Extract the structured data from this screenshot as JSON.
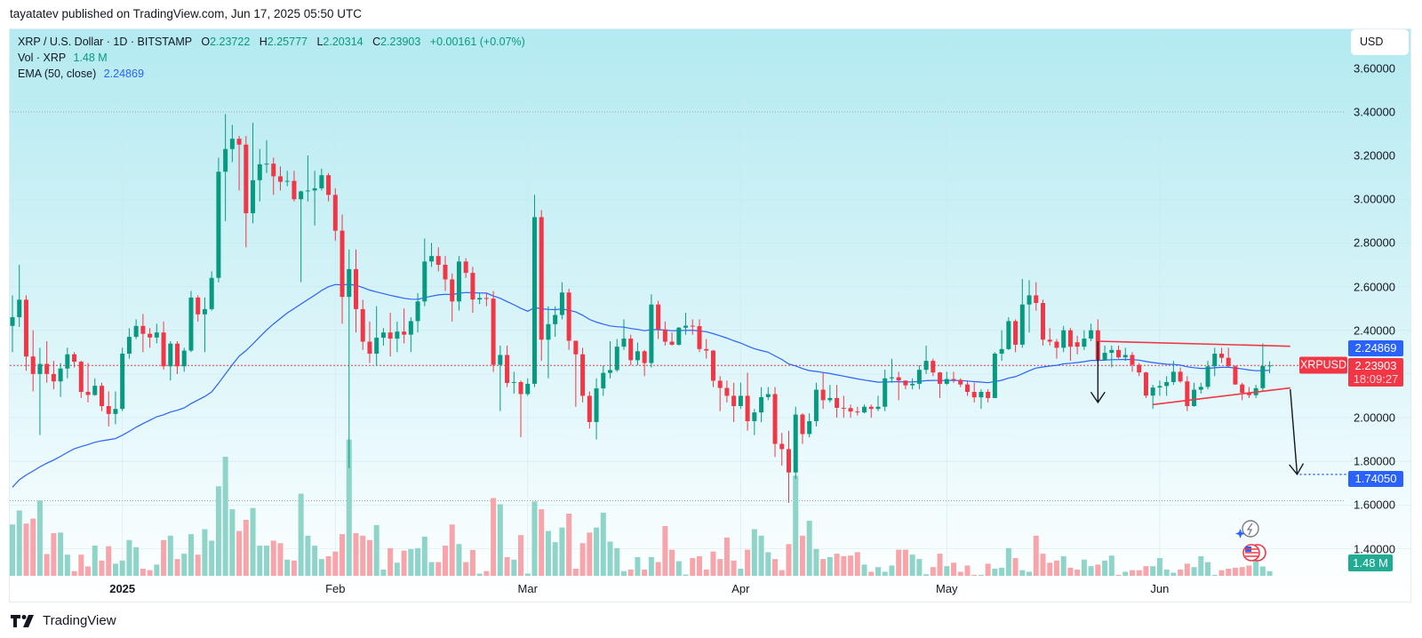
{
  "header": {
    "publisher_line": "tayatatev published on TradingView.com, Jun 17, 2025 05:50 UTC"
  },
  "legend": {
    "symbol": "XRP / U.S. Dollar · 1D · BITSTAMP",
    "o_label": "O",
    "o": "2.23722",
    "h_label": "H",
    "h": "2.25777",
    "l_label": "L",
    "l": "2.20314",
    "c_label": "C",
    "c": "2.23903",
    "change": "+0.00161 (+0.07%)",
    "vol_label": "Vol · XRP",
    "vol": "1.48 M",
    "ema_label": "EMA (50, close)",
    "ema": "2.24869"
  },
  "currency_button": "USD",
  "price_labels": {
    "ema": "2.24869",
    "symbol": "XRPUSD",
    "last": "2.23903",
    "countdown": "18:09:27",
    "target": "1.74050",
    "volume": "1.48 M"
  },
  "footer": {
    "brand": "TradingView"
  },
  "colors": {
    "up": "#089981",
    "down": "#f23645",
    "up_volume": "#8fd4c9",
    "down_volume": "#f7a5aa",
    "ema": "#2962ff",
    "target": "#2962ff",
    "trendline": "#f23645",
    "arrow": "#131722"
  },
  "chart_data": {
    "type": "candlestick",
    "interval": "1D",
    "first_date": "2024-12-16",
    "ylim": [
      1.276,
      3.782
    ],
    "y_ticks": [
      {
        "value": 3.6,
        "label": "3.60000"
      },
      {
        "value": 3.4,
        "label": "3.40000"
      },
      {
        "value": 3.2,
        "label": "3.20000"
      },
      {
        "value": 3.0,
        "label": "3.00000"
      },
      {
        "value": 2.8,
        "label": "2.80000"
      },
      {
        "value": 2.6,
        "label": "2.60000"
      },
      {
        "value": 2.4,
        "label": "2.40000"
      },
      {
        "value": 2.0,
        "label": "2.00000"
      },
      {
        "value": 1.8,
        "label": "1.80000"
      },
      {
        "value": 1.6,
        "label": "1.60000"
      },
      {
        "value": 1.4,
        "label": "1.40000"
      }
    ],
    "x_ticks": [
      {
        "date": "2025-01-01",
        "label": "2025",
        "year": true
      },
      {
        "date": "2025-02-01",
        "label": "Feb"
      },
      {
        "date": "2025-03-01",
        "label": "Mar"
      },
      {
        "date": "2025-04-01",
        "label": "Apr"
      },
      {
        "date": "2025-05-01",
        "label": "May"
      },
      {
        "date": "2025-06-01",
        "label": "Jun"
      }
    ],
    "ema_period": 50,
    "hlines": [
      3.4,
      1.62
    ],
    "last_price": 2.23903,
    "candles": [
      [
        2.42,
        2.56,
        2.3,
        2.46
      ],
      [
        2.46,
        2.7,
        2.415,
        2.54
      ],
      [
        2.54,
        2.56,
        2.215,
        2.28
      ],
      [
        2.28,
        2.4,
        2.12,
        2.2
      ],
      [
        2.2,
        2.32,
        1.92,
        2.246
      ],
      [
        2.246,
        2.35,
        2.16,
        2.2
      ],
      [
        2.2,
        2.26,
        2.13,
        2.166
      ],
      [
        2.166,
        2.25,
        2.095,
        2.225
      ],
      [
        2.225,
        2.32,
        2.18,
        2.29
      ],
      [
        2.29,
        2.3,
        2.23,
        2.256
      ],
      [
        2.256,
        2.26,
        2.09,
        2.118
      ],
      [
        2.118,
        2.25,
        2.07,
        2.104
      ],
      [
        2.104,
        2.18,
        2.1,
        2.146
      ],
      [
        2.146,
        2.16,
        2.03,
        2.053
      ],
      [
        2.053,
        2.12,
        1.96,
        2.017
      ],
      [
        2.017,
        2.12,
        1.97,
        2.04
      ],
      [
        2.04,
        2.32,
        2.03,
        2.293
      ],
      [
        2.293,
        2.41,
        2.27,
        2.37
      ],
      [
        2.37,
        2.45,
        2.36,
        2.42
      ],
      [
        2.42,
        2.475,
        2.3,
        2.384
      ],
      [
        2.384,
        2.41,
        2.32,
        2.367
      ],
      [
        2.367,
        2.43,
        2.34,
        2.39
      ],
      [
        2.39,
        2.44,
        2.22,
        2.235
      ],
      [
        2.235,
        2.35,
        2.17,
        2.339
      ],
      [
        2.339,
        2.35,
        2.2,
        2.235
      ],
      [
        2.235,
        2.32,
        2.21,
        2.307
      ],
      [
        2.307,
        2.58,
        2.3,
        2.55
      ],
      [
        2.55,
        2.56,
        2.44,
        2.473
      ],
      [
        2.473,
        2.55,
        2.3,
        2.497
      ],
      [
        2.497,
        2.67,
        2.49,
        2.64
      ],
      [
        2.64,
        3.19,
        2.62,
        3.126
      ],
      [
        3.126,
        3.39,
        2.9,
        3.23
      ],
      [
        3.23,
        3.34,
        3.17,
        3.277
      ],
      [
        3.277,
        3.29,
        3.04,
        3.25
      ],
      [
        3.25,
        3.29,
        2.78,
        2.936
      ],
      [
        2.936,
        3.35,
        2.89,
        3.087
      ],
      [
        3.087,
        3.23,
        2.99,
        3.16
      ],
      [
        3.16,
        3.27,
        3.12,
        3.163
      ],
      [
        3.163,
        3.19,
        3.02,
        3.105
      ],
      [
        3.105,
        3.15,
        3.04,
        3.08
      ],
      [
        3.08,
        3.13,
        3.06,
        3.084
      ],
      [
        3.084,
        3.13,
        2.99,
        3.0
      ],
      [
        3.0,
        3.04,
        2.62,
        3.036
      ],
      [
        3.036,
        3.2,
        2.99,
        3.04
      ],
      [
        3.04,
        3.13,
        2.88,
        3.05
      ],
      [
        3.05,
        3.14,
        3.04,
        3.11
      ],
      [
        3.11,
        3.12,
        2.99,
        3.02
      ],
      [
        3.02,
        3.05,
        2.81,
        2.856
      ],
      [
        2.856,
        2.93,
        2.43,
        2.553
      ],
      [
        2.553,
        2.77,
        1.77,
        2.68
      ],
      [
        2.68,
        2.77,
        2.39,
        2.497
      ],
      [
        2.497,
        2.54,
        2.31,
        2.348
      ],
      [
        2.348,
        2.44,
        2.25,
        2.293
      ],
      [
        2.293,
        2.51,
        2.24,
        2.366
      ],
      [
        2.366,
        2.41,
        2.33,
        2.39
      ],
      [
        2.39,
        2.48,
        2.28,
        2.362
      ],
      [
        2.362,
        2.44,
        2.3,
        2.394
      ],
      [
        2.394,
        2.5,
        2.34,
        2.38
      ],
      [
        2.38,
        2.46,
        2.3,
        2.442
      ],
      [
        2.442,
        2.57,
        2.39,
        2.532
      ],
      [
        2.532,
        2.82,
        2.51,
        2.715
      ],
      [
        2.715,
        2.8,
        2.69,
        2.74
      ],
      [
        2.74,
        2.78,
        2.67,
        2.7
      ],
      [
        2.7,
        2.74,
        2.58,
        2.633
      ],
      [
        2.633,
        2.66,
        2.44,
        2.532
      ],
      [
        2.532,
        2.74,
        2.49,
        2.715
      ],
      [
        2.715,
        2.73,
        2.64,
        2.663
      ],
      [
        2.663,
        2.69,
        2.48,
        2.541
      ],
      [
        2.541,
        2.57,
        2.52,
        2.548
      ],
      [
        2.548,
        2.57,
        2.51,
        2.545
      ],
      [
        2.545,
        2.58,
        2.21,
        2.242
      ],
      [
        2.242,
        2.33,
        2.03,
        2.287
      ],
      [
        2.287,
        2.33,
        2.14,
        2.159
      ],
      [
        2.159,
        2.21,
        2.11,
        2.163
      ],
      [
        2.163,
        2.17,
        1.91,
        2.108
      ],
      [
        2.108,
        2.18,
        2.1,
        2.155
      ],
      [
        2.155,
        3.02,
        2.14,
        2.918
      ],
      [
        2.918,
        2.95,
        2.26,
        2.357
      ],
      [
        2.357,
        2.51,
        2.18,
        2.428
      ],
      [
        2.428,
        2.51,
        2.37,
        2.47
      ],
      [
        2.47,
        2.62,
        2.45,
        2.573
      ],
      [
        2.573,
        2.59,
        2.31,
        2.352
      ],
      [
        2.352,
        2.35,
        2.05,
        2.29
      ],
      [
        2.29,
        2.32,
        2.07,
        2.1
      ],
      [
        2.1,
        2.12,
        1.95,
        1.98
      ],
      [
        1.98,
        2.18,
        1.9,
        2.134
      ],
      [
        2.134,
        2.24,
        2.1,
        2.205
      ],
      [
        2.205,
        2.35,
        2.18,
        2.218
      ],
      [
        2.218,
        2.36,
        2.21,
        2.325
      ],
      [
        2.325,
        2.45,
        2.31,
        2.362
      ],
      [
        2.362,
        2.38,
        2.24,
        2.263
      ],
      [
        2.263,
        2.344,
        2.24,
        2.304
      ],
      [
        2.304,
        2.31,
        2.19,
        2.25
      ],
      [
        2.25,
        2.565,
        2.23,
        2.518
      ],
      [
        2.518,
        2.535,
        2.36,
        2.404
      ],
      [
        2.404,
        2.44,
        2.33,
        2.348
      ],
      [
        2.348,
        2.39,
        2.33,
        2.334
      ],
      [
        2.334,
        2.415,
        2.33,
        2.412
      ],
      [
        2.412,
        2.48,
        2.38,
        2.421
      ],
      [
        2.421,
        2.45,
        2.38,
        2.419
      ],
      [
        2.419,
        2.45,
        2.3,
        2.314
      ],
      [
        2.314,
        2.36,
        2.27,
        2.307
      ],
      [
        2.307,
        2.31,
        2.14,
        2.169
      ],
      [
        2.169,
        2.19,
        2.03,
        2.136
      ],
      [
        2.136,
        2.17,
        2.07,
        2.1
      ],
      [
        2.1,
        2.16,
        1.98,
        2.053
      ],
      [
        2.053,
        2.16,
        2.04,
        2.1
      ],
      [
        2.1,
        2.206,
        1.94,
        1.984
      ],
      [
        1.984,
        2.04,
        1.92,
        2.024
      ],
      [
        2.024,
        2.14,
        1.98,
        2.094
      ],
      [
        2.094,
        2.14,
        2.08,
        2.108
      ],
      [
        2.108,
        2.14,
        1.82,
        1.88
      ],
      [
        1.88,
        1.93,
        1.78,
        1.856
      ],
      [
        1.856,
        1.94,
        1.61,
        1.749
      ],
      [
        1.749,
        2.05,
        1.72,
        2.014
      ],
      [
        2.014,
        2.02,
        1.88,
        1.925
      ],
      [
        1.925,
        2.02,
        1.91,
        1.984
      ],
      [
        1.984,
        2.16,
        1.96,
        2.128
      ],
      [
        2.128,
        2.206,
        2.04,
        2.08
      ],
      [
        2.08,
        2.15,
        2.07,
        2.09
      ],
      [
        2.09,
        2.15,
        2.0,
        2.045
      ],
      [
        2.045,
        2.1,
        2.0,
        2.044
      ],
      [
        2.044,
        2.06,
        2.0,
        2.028
      ],
      [
        2.028,
        2.05,
        2.01,
        2.024
      ],
      [
        2.024,
        2.06,
        2.02,
        2.05
      ],
      [
        2.05,
        2.06,
        2.0,
        2.04
      ],
      [
        2.04,
        2.1,
        2.03,
        2.05
      ],
      [
        2.05,
        2.22,
        2.03,
        2.18
      ],
      [
        2.18,
        2.27,
        2.16,
        2.185
      ],
      [
        2.185,
        2.21,
        2.08,
        2.17
      ],
      [
        2.17,
        2.17,
        2.13,
        2.148
      ],
      [
        2.148,
        2.18,
        2.13,
        2.155
      ],
      [
        2.155,
        2.24,
        2.13,
        2.219
      ],
      [
        2.219,
        2.33,
        2.2,
        2.26
      ],
      [
        2.26,
        2.27,
        2.19,
        2.207
      ],
      [
        2.207,
        2.21,
        2.09,
        2.155
      ],
      [
        2.155,
        2.21,
        2.15,
        2.177
      ],
      [
        2.177,
        2.21,
        2.16,
        2.173
      ],
      [
        2.173,
        2.18,
        2.14,
        2.152
      ],
      [
        2.152,
        2.17,
        2.1,
        2.118
      ],
      [
        2.118,
        2.16,
        2.07,
        2.093
      ],
      [
        2.093,
        2.13,
        2.04,
        2.118
      ],
      [
        2.118,
        2.13,
        2.07,
        2.09
      ],
      [
        2.09,
        2.3,
        2.09,
        2.293
      ],
      [
        2.293,
        2.4,
        2.26,
        2.314
      ],
      [
        2.314,
        2.46,
        2.31,
        2.442
      ],
      [
        2.442,
        2.45,
        2.3,
        2.334
      ],
      [
        2.334,
        2.635,
        2.32,
        2.518
      ],
      [
        2.518,
        2.63,
        2.39,
        2.56
      ],
      [
        2.56,
        2.62,
        2.49,
        2.525
      ],
      [
        2.525,
        2.54,
        2.33,
        2.357
      ],
      [
        2.357,
        2.41,
        2.33,
        2.348
      ],
      [
        2.348,
        2.36,
        2.27,
        2.32
      ],
      [
        2.32,
        2.42,
        2.3,
        2.4
      ],
      [
        2.4,
        2.41,
        2.26,
        2.325
      ],
      [
        2.345,
        2.375,
        2.29,
        2.325
      ],
      [
        2.325,
        2.4,
        2.31,
        2.362
      ],
      [
        2.362,
        2.43,
        2.35,
        2.4
      ],
      [
        2.4,
        2.45,
        2.26,
        2.263
      ],
      [
        2.263,
        2.33,
        2.26,
        2.297
      ],
      [
        2.297,
        2.33,
        2.23,
        2.31
      ],
      [
        2.31,
        2.33,
        2.27,
        2.276
      ],
      [
        2.276,
        2.32,
        2.26,
        2.287
      ],
      [
        2.287,
        2.3,
        2.21,
        2.242
      ],
      [
        2.242,
        2.25,
        2.19,
        2.207
      ],
      [
        2.207,
        2.21,
        2.09,
        2.101
      ],
      [
        2.101,
        2.15,
        2.04,
        2.138
      ],
      [
        2.138,
        2.17,
        2.1,
        2.145
      ],
      [
        2.145,
        2.19,
        2.1,
        2.163
      ],
      [
        2.163,
        2.26,
        2.15,
        2.21
      ],
      [
        2.21,
        2.23,
        2.16,
        2.166
      ],
      [
        2.166,
        2.19,
        2.03,
        2.053
      ],
      [
        2.053,
        2.16,
        2.05,
        2.128
      ],
      [
        2.128,
        2.16,
        2.11,
        2.141
      ],
      [
        2.141,
        2.26,
        2.13,
        2.235
      ],
      [
        2.235,
        2.32,
        2.19,
        2.293
      ],
      [
        2.293,
        2.32,
        2.25,
        2.274
      ],
      [
        2.274,
        2.32,
        2.23,
        2.235
      ],
      [
        2.235,
        2.24,
        2.15,
        2.152
      ],
      [
        2.152,
        2.16,
        2.08,
        2.114
      ],
      [
        2.114,
        2.14,
        2.09,
        2.103
      ],
      [
        2.103,
        2.15,
        2.09,
        2.135
      ],
      [
        2.135,
        2.34,
        2.12,
        2.237
      ],
      [
        2.23722,
        2.25777,
        2.20314,
        2.23903
      ]
    ],
    "volume_m": [
      16.5,
      21,
      16.8,
      18.4,
      24.2,
      7,
      13.7,
      13.9,
      6.8,
      1.5,
      6.8,
      3,
      9.7,
      4.9,
      9.5,
      3.9,
      4.9,
      11.5,
      9.2,
      2.3,
      1.8,
      3.6,
      11.5,
      12.9,
      5.4,
      7.1,
      13.4,
      6.8,
      15,
      11.3,
      28.8,
      38.3,
      21.4,
      14.4,
      18,
      21.8,
      9.7,
      9.7,
      11.3,
      10.5,
      5.2,
      4.9,
      26.4,
      12.9,
      9.7,
      5.4,
      6.3,
      7.8,
      13.4,
      43.8,
      13.7,
      12.9,
      11.5,
      16.3,
      2,
      8.9,
      4.2,
      8.1,
      8.6,
      8.9,
      12.6,
      4.4,
      4.4,
      9.7,
      16.5,
      10.2,
      4.4,
      8.3,
      0.7,
      1.5,
      25,
      23,
      6,
      5.2,
      13.1,
      0.7,
      23.9,
      21.4,
      14.4,
      10.8,
      15.5,
      20,
      2.3,
      10.5,
      13.9,
      15.5,
      20.3,
      11,
      8.9,
      1.5,
      2,
      6,
      2,
      6,
      4.4,
      16,
      8.4,
      4.7,
      0.4,
      5.7,
      6.3,
      2,
      7.8,
      5.4,
      12.3,
      4.9,
      2.3,
      8.4,
      15,
      12.9,
      7.6,
      5.4,
      1.8,
      10.2,
      32.2,
      12.9,
      17.7,
      8.6,
      5.4,
      6,
      7.1,
      6.3,
      6.5,
      7.6,
      3.6,
      1.3,
      2.8,
      1.3,
      3.3,
      8.4,
      8.4,
      6.8,
      5.4,
      0.5,
      2.8,
      7.1,
      3.1,
      4.2,
      1.3,
      3.3,
      0.3,
      0.3,
      3.9,
      2.3,
      2.6,
      8.9,
      5.7,
      1.8,
      1.3,
      12.9,
      7.1,
      4.2,
      4.9,
      6.3,
      2.6,
      2,
      5.2,
      3.1,
      3.6,
      4.9,
      6.5,
      0.3,
      1.3,
      1.8,
      1.8,
      3.1,
      3.1,
      5.7,
      2,
      1,
      2,
      3.9,
      2.8,
      6.3,
      4.4,
      0.3,
      1.8,
      2.3,
      2.6,
      2.8,
      3.3,
      8.6,
      3.0,
      1.48
    ],
    "annotations": {
      "trendlines": [
        {
          "from": {
            "date": "2025-05-23",
            "price": 2.35
          },
          "to": {
            "date": "2025-06-20",
            "price": 2.327
          }
        },
        {
          "from": {
            "date": "2025-05-31",
            "price": 2.06
          },
          "to": {
            "date": "2025-06-20",
            "price": 2.136
          }
        }
      ],
      "arrows": [
        {
          "from": {
            "date": "2025-05-23",
            "price": 2.35
          },
          "to": {
            "date": "2025-05-23",
            "price": 2.07
          }
        },
        {
          "from": {
            "date": "2025-06-20",
            "price": 2.13
          },
          "to": {
            "date": "2025-06-21",
            "price": 1.7405
          }
        }
      ],
      "target_price": 1.7405
    }
  }
}
